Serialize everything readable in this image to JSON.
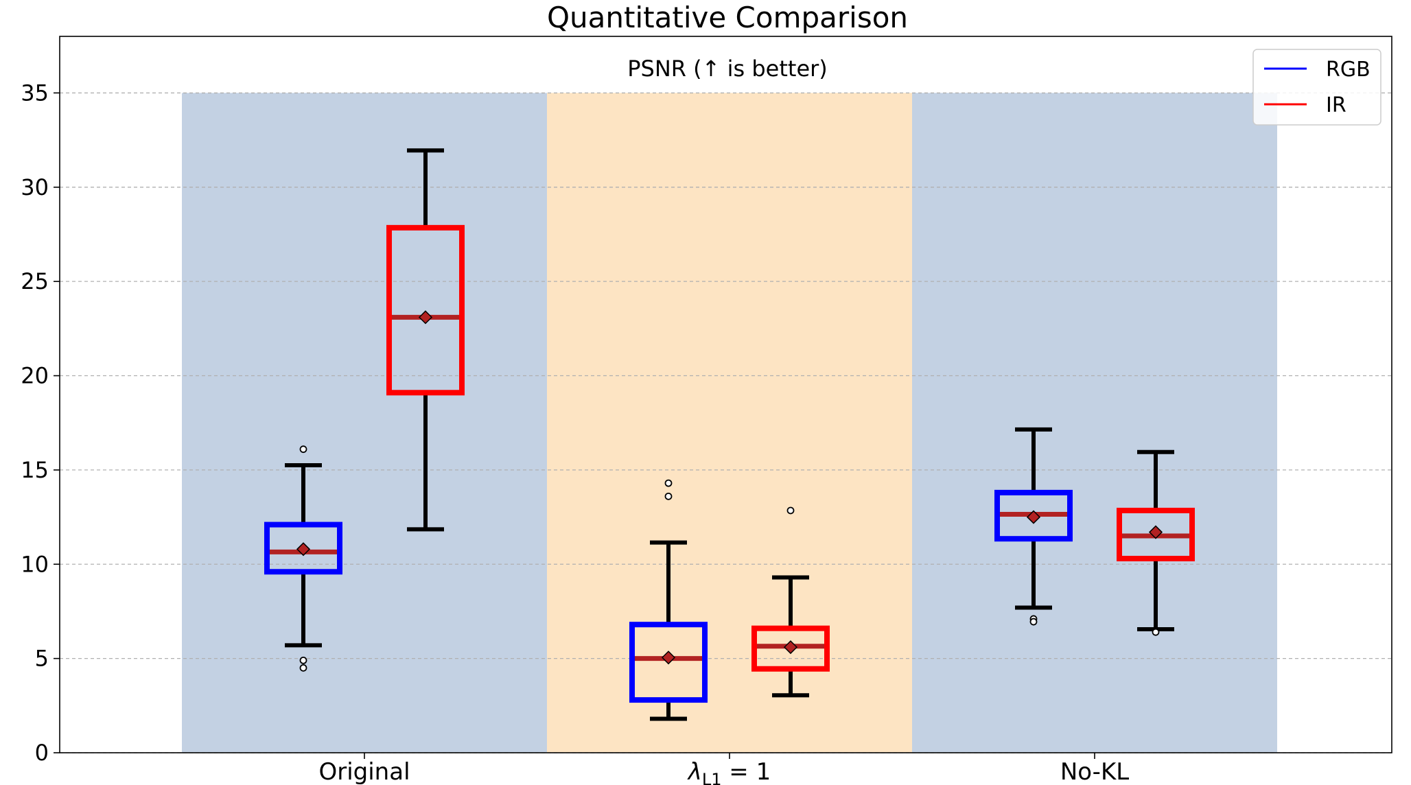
{
  "chart_data": {
    "type": "box",
    "title": "Quantitative Comparison",
    "subtitle": "PSNR (↑ is better)",
    "xlabel": "",
    "ylabel": "",
    "ylim": [
      0,
      38
    ],
    "yticks": [
      0,
      5,
      10,
      15,
      20,
      25,
      30,
      35
    ],
    "grid": true,
    "legend_position": "top-right",
    "categories": [
      {
        "label_main": "Original",
        "label_sub": "",
        "label_suffix": "",
        "band_color": "#c3d1e3"
      },
      {
        "label_main": "λ",
        "label_sub": "L1",
        "label_suffix": " = 1",
        "band_color": "#fde4c3"
      },
      {
        "label_main": "No-KL",
        "label_sub": "",
        "label_suffix": "",
        "band_color": "#c3d1e3"
      }
    ],
    "band_top": 35,
    "series": [
      {
        "name": "RGB",
        "color": "#0000ff",
        "boxes": [
          {
            "whislo": 5.7,
            "q1": 9.6,
            "median": 10.65,
            "mean": 10.8,
            "q3": 12.1,
            "whishi": 15.25,
            "fliers": [
              16.1,
              4.9,
              4.5
            ]
          },
          {
            "whislo": 1.8,
            "q1": 2.8,
            "median": 5.0,
            "mean": 5.05,
            "q3": 6.8,
            "whislo_note": "",
            "whishi": 11.15,
            "fliers": [
              14.3,
              13.6
            ]
          },
          {
            "whislo": 7.7,
            "q1": 11.35,
            "median": 12.65,
            "mean": 12.5,
            "q3": 13.8,
            "whishi": 17.15,
            "fliers": [
              7.1,
              6.95
            ]
          }
        ]
      },
      {
        "name": "IR",
        "color": "#ff0000",
        "boxes": [
          {
            "whislo": 11.85,
            "q1": 19.1,
            "median": 23.1,
            "mean": 23.1,
            "q3": 27.85,
            "whishi": 31.95,
            "fliers": []
          },
          {
            "whislo": 3.05,
            "q1": 4.45,
            "median": 5.65,
            "mean": 5.6,
            "q3": 6.6,
            "whishi": 9.3,
            "fliers": [
              12.85
            ]
          },
          {
            "whislo": 6.55,
            "q1": 10.3,
            "median": 11.5,
            "mean": 11.7,
            "q3": 12.85,
            "whishi": 15.95,
            "fliers": [
              6.4
            ]
          }
        ]
      }
    ]
  }
}
